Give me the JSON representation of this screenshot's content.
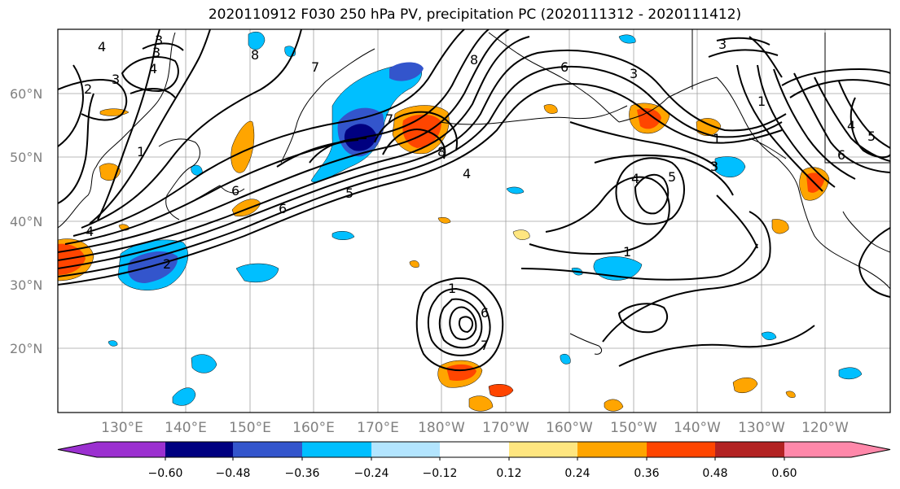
{
  "title": "2020110912 F030 250 hPa PV, precipitation PC (2020111312 - 2020111412)",
  "lat_labels": [
    "60°N",
    "50°N",
    "40°N",
    "30°N",
    "20°N"
  ],
  "lon_labels": [
    "130°E",
    "140°E",
    "150°E",
    "160°E",
    "170°E",
    "180°W",
    "170°W",
    "160°W",
    "150°W",
    "140°W",
    "130°W",
    "120°W"
  ],
  "colorbar": {
    "ticks": [
      "−0.60",
      "−0.48",
      "−0.36",
      "−0.24",
      "−0.12",
      "0.12",
      "0.24",
      "0.36",
      "0.48",
      "0.60"
    ],
    "colors": [
      "#9b30d0",
      "#000080",
      "#3355cc",
      "#00bfff",
      "#b3e5ff",
      "#ffffff",
      "#ffe680",
      "#ffa500",
      "#ff4500",
      "#b22222",
      "#ff88aa"
    ]
  },
  "contour_labels": [
    "4",
    "2",
    "3",
    "4",
    "3",
    "6",
    "1",
    "7",
    "8",
    "8",
    "3",
    "4",
    "5",
    "6",
    "7",
    "8",
    "3",
    "2",
    "1",
    "4",
    "5",
    "6",
    "3",
    "1",
    "4",
    "5",
    "1",
    "7",
    "6",
    "1",
    "6",
    "3",
    "4"
  ],
  "colors": {
    "precip_negative": "#00bfff",
    "precip_positive": "#ffa500",
    "coast": "#000000",
    "grid": "#a0a0a0"
  }
}
